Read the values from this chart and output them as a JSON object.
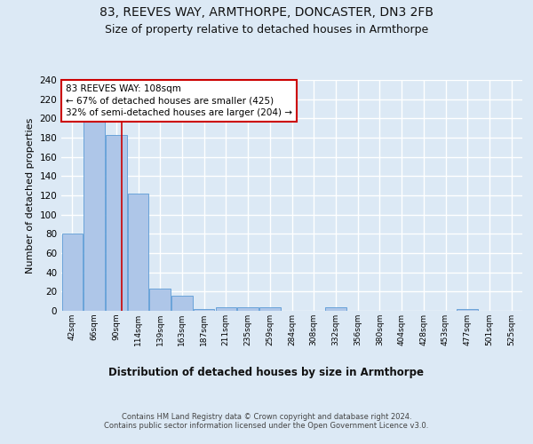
{
  "title1": "83, REEVES WAY, ARMTHORPE, DONCASTER, DN3 2FB",
  "title2": "Size of property relative to detached houses in Armthorpe",
  "xlabel": "Distribution of detached houses by size in Armthorpe",
  "ylabel": "Number of detached properties",
  "bin_labels": [
    "42sqm",
    "66sqm",
    "90sqm",
    "114sqm",
    "139sqm",
    "163sqm",
    "187sqm",
    "211sqm",
    "235sqm",
    "259sqm",
    "284sqm",
    "308sqm",
    "332sqm",
    "356sqm",
    "380sqm",
    "404sqm",
    "428sqm",
    "453sqm",
    "477sqm",
    "501sqm",
    "525sqm"
  ],
  "bar_values": [
    80,
    200,
    183,
    122,
    23,
    16,
    2,
    4,
    4,
    4,
    0,
    0,
    4,
    0,
    0,
    0,
    0,
    0,
    2,
    0,
    0
  ],
  "bar_color": "#aec6e8",
  "bar_edgecolor": "#5b9bd5",
  "property_line_x": 2.25,
  "property_line_color": "#cc0000",
  "annotation_text": "83 REEVES WAY: 108sqm\n← 67% of detached houses are smaller (425)\n32% of semi-detached houses are larger (204) →",
  "annotation_box_color": "#ffffff",
  "annotation_border_color": "#cc0000",
  "ylim": [
    0,
    240
  ],
  "yticks": [
    0,
    20,
    40,
    60,
    80,
    100,
    120,
    140,
    160,
    180,
    200,
    220,
    240
  ],
  "footer_text": "Contains HM Land Registry data © Crown copyright and database right 2024.\nContains public sector information licensed under the Open Government Licence v3.0.",
  "background_color": "#dce9f5",
  "grid_color": "#ffffff",
  "title1_fontsize": 10,
  "title2_fontsize": 9,
  "xlabel_fontsize": 8.5,
  "ylabel_fontsize": 8,
  "bar_width": 0.95
}
